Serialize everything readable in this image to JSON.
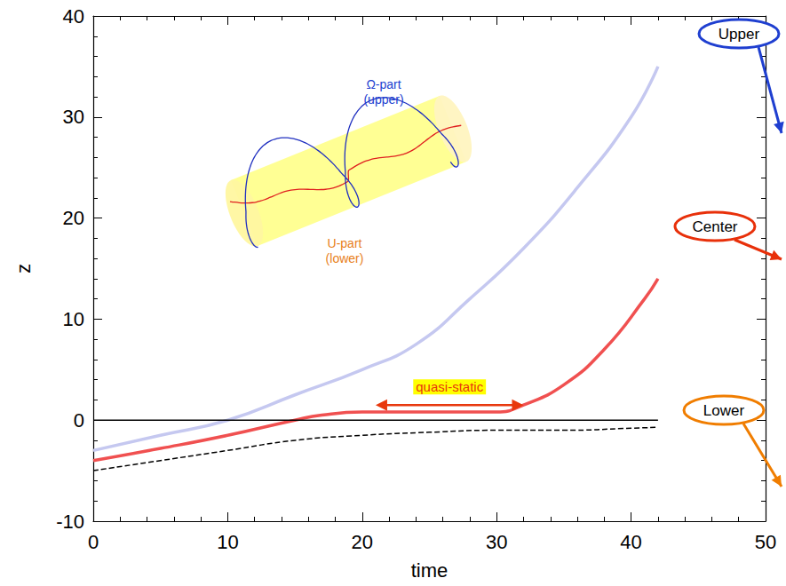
{
  "chart_data": {
    "type": "line",
    "xlabel": "time",
    "ylabel": "z",
    "xlim": [
      0,
      50
    ],
    "xticks": [
      0,
      10,
      20,
      30,
      40,
      50
    ],
    "ylim": [
      -10,
      40
    ],
    "yticks": [
      -10,
      0,
      10,
      20,
      30,
      40
    ],
    "grid": false,
    "series": [
      {
        "name": "Upper",
        "color": "#c5c8f0",
        "line_style": "solid",
        "x": [
          0,
          5,
          10,
          15,
          20,
          24,
          28,
          32,
          36,
          40,
          42
        ],
        "values": [
          -3,
          -1.5,
          0,
          2.5,
          5,
          7.5,
          12,
          17,
          23,
          30,
          35
        ]
      },
      {
        "name": "Center",
        "color": "#f05050",
        "line_style": "solid",
        "x": [
          0,
          5,
          10,
          15,
          17,
          20,
          25,
          30,
          32,
          35,
          38,
          41,
          42
        ],
        "values": [
          -4,
          -2.8,
          -1.5,
          0,
          0.5,
          0.8,
          0.8,
          0.8,
          1.5,
          3.5,
          7,
          12,
          14
        ]
      },
      {
        "name": "Lower",
        "color": "#000000",
        "line_style": "dashed",
        "x": [
          0,
          5,
          10,
          15,
          20,
          25,
          30,
          35,
          40,
          42
        ],
        "values": [
          -5,
          -4,
          -3,
          -2,
          -1.5,
          -1.2,
          -1,
          -1,
          -0.8,
          -0.7
        ]
      },
      {
        "color": "#000000",
        "line_style": "solid",
        "x": [
          0,
          42
        ],
        "values": [
          0,
          0
        ]
      }
    ],
    "annotations": [
      {
        "text": "quasi-static",
        "x": [
          21,
          32
        ],
        "y": 1.5,
        "color": "#e8380d"
      }
    ],
    "inset": {
      "upper_label": "Ω-part (upper)",
      "lower_label": "U-part (lower)"
    }
  }
}
